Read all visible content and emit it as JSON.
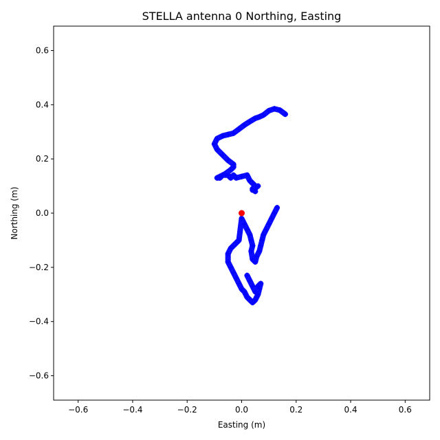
{
  "chart_data": {
    "type": "scatter",
    "title": "STELLA antenna 0 Northing, Easting",
    "xlabel": "Easting (m)",
    "ylabel": "Northing (m)",
    "xlim": [
      -0.69,
      0.69
    ],
    "ylim": [
      -0.69,
      0.69
    ],
    "xticks": [
      -0.6,
      -0.4,
      -0.2,
      0.0,
      0.2,
      0.4,
      0.6
    ],
    "yticks": [
      -0.6,
      -0.4,
      -0.2,
      0.0,
      0.2,
      0.4,
      0.6
    ],
    "xtick_labels": [
      "−0.6",
      "−0.4",
      "−0.2",
      "0.0",
      "0.2",
      "0.4",
      "0.6"
    ],
    "ytick_labels": [
      "−0.6",
      "−0.4",
      "−0.2",
      "0.0",
      "0.2",
      "0.4",
      "0.6"
    ],
    "grid": false,
    "series": [
      {
        "marker": "plus",
        "color": "#0000ff",
        "x": [
          0.16,
          0.14,
          0.12,
          0.1,
          0.08,
          0.065,
          0.05,
          0.03,
          0.01,
          -0.01,
          -0.03,
          -0.05,
          -0.07,
          -0.09,
          -0.1,
          -0.09,
          -0.07,
          -0.05,
          -0.03,
          -0.03,
          -0.04,
          -0.06,
          -0.08,
          -0.09,
          -0.08,
          -0.07,
          -0.05,
          -0.04,
          -0.03,
          -0.02,
          0.0,
          0.02,
          0.03,
          0.04,
          0.05,
          0.05,
          0.04,
          0.06,
          0.04,
          0.05
        ],
        "y": [
          0.365,
          0.38,
          0.385,
          0.378,
          0.362,
          0.355,
          0.35,
          0.338,
          0.325,
          0.31,
          0.295,
          0.29,
          0.285,
          0.275,
          0.255,
          0.235,
          0.215,
          0.195,
          0.18,
          0.17,
          0.16,
          0.145,
          0.135,
          0.13,
          0.13,
          0.14,
          0.14,
          0.13,
          0.14,
          0.13,
          0.135,
          0.14,
          0.12,
          0.11,
          0.1,
          0.09,
          0.085,
          0.1,
          0.09,
          0.08
        ]
      },
      {
        "marker": "plus",
        "color": "#0000ff",
        "x": [
          0.13,
          0.12,
          0.11,
          0.1,
          0.09,
          0.08,
          0.075,
          0.07,
          0.065,
          0.055,
          0.05,
          0.04,
          0.035,
          0.04,
          0.035,
          0.03,
          0.02,
          0.01,
          0.0,
          -0.01,
          -0.02,
          -0.03,
          -0.04,
          -0.05,
          -0.05,
          -0.04,
          -0.03,
          -0.02,
          -0.01,
          0.0,
          0.01,
          0.015,
          0.02,
          0.03,
          0.04,
          0.05,
          0.055,
          0.06,
          0.065,
          0.07,
          0.06,
          0.05,
          0.04,
          0.03,
          0.02
        ],
        "y": [
          0.02,
          0.0,
          -0.02,
          -0.04,
          -0.06,
          -0.08,
          -0.1,
          -0.12,
          -0.14,
          -0.16,
          -0.18,
          -0.17,
          -0.14,
          -0.12,
          -0.1,
          -0.08,
          -0.06,
          -0.04,
          -0.02,
          -0.1,
          -0.11,
          -0.12,
          -0.13,
          -0.15,
          -0.18,
          -0.2,
          -0.22,
          -0.24,
          -0.26,
          -0.28,
          -0.29,
          -0.3,
          -0.31,
          -0.32,
          -0.33,
          -0.32,
          -0.31,
          -0.3,
          -0.28,
          -0.26,
          -0.27,
          -0.29,
          -0.27,
          -0.25,
          -0.23
        ]
      },
      {
        "marker": "circle",
        "color": "#ff0000",
        "x": [
          0.0
        ],
        "y": [
          0.0
        ]
      }
    ]
  }
}
